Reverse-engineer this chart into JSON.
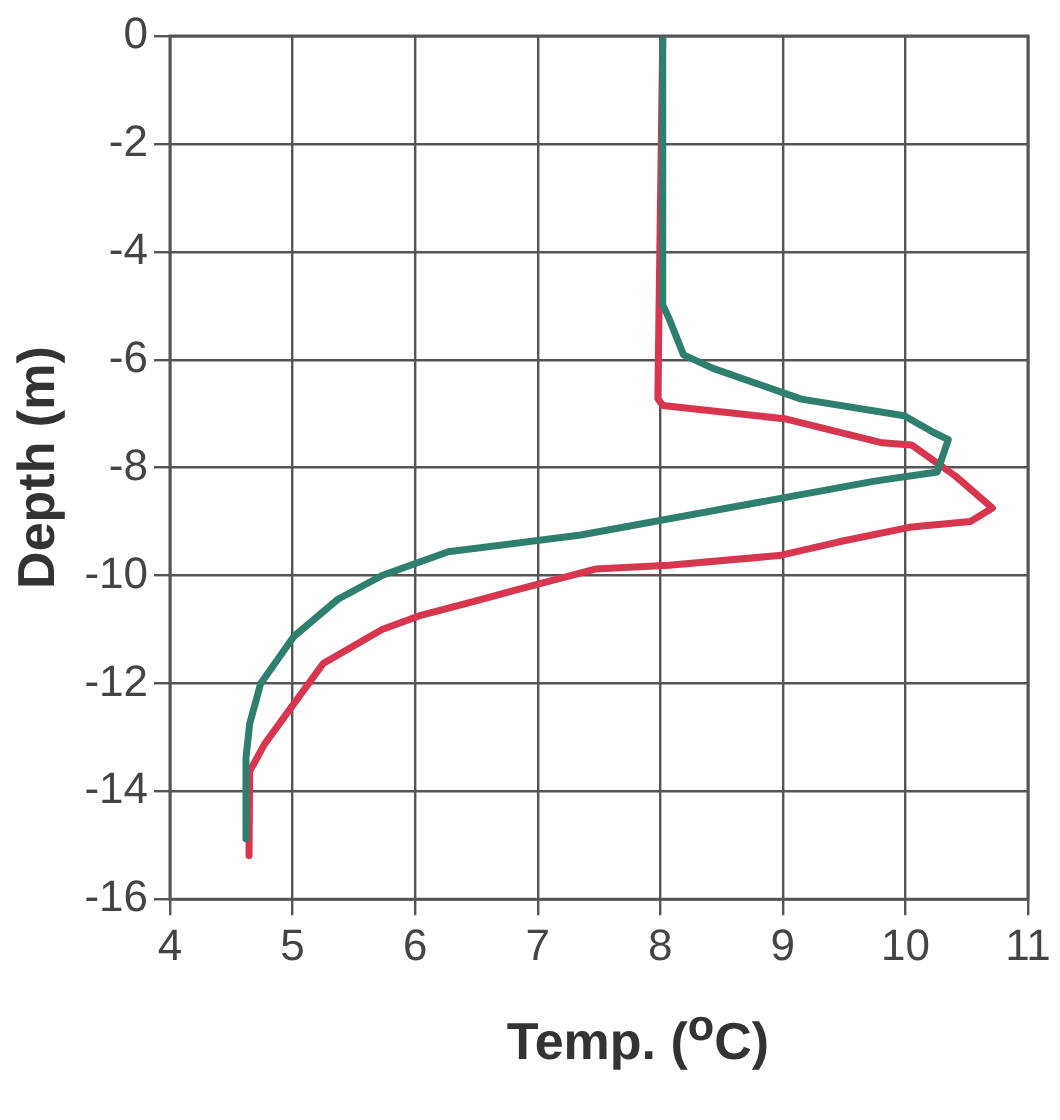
{
  "chart_data": {
    "type": "line",
    "xlabel": "Temp. ($^{o}$C)",
    "ylabel": "Depth (m)",
    "xlim": [
      4,
      11
    ],
    "xticks": [
      4,
      5,
      6,
      7,
      8,
      9,
      10,
      11
    ],
    "ylim": [
      -16,
      0
    ],
    "yticks": [
      -16,
      -14,
      -12,
      -10,
      -8,
      -6,
      -4,
      -2,
      0
    ],
    "grid": true,
    "legend": false,
    "marker": "none",
    "line_style": "solid",
    "series": [
      {
        "color": "#2e7f6e",
        "x": [
          8.02,
          8.02,
          8.07,
          8.19,
          8.43,
          9.15,
          9.99,
          10.23,
          10.35,
          10.26,
          9.75,
          8.55,
          7.35,
          6.27,
          5.73,
          5.37,
          5.01,
          4.74,
          4.65,
          4.62,
          4.62
        ],
        "values": [
          0,
          -4.98,
          -5.23,
          -5.91,
          -6.16,
          -6.73,
          -7.04,
          -7.35,
          -7.48,
          -8.08,
          -8.25,
          -8.75,
          -9.25,
          -9.56,
          -10.0,
          -10.44,
          -11.13,
          -12.0,
          -12.75,
          -13.38,
          -14.88
        ]
      },
      {
        "color": "#d8354e",
        "x": [
          8.02,
          7.98,
          8.02,
          9.03,
          9.81,
          10.05,
          10.41,
          10.71,
          10.53,
          10.05,
          9.45,
          8.97,
          8.07,
          7.47,
          7.05,
          6.45,
          6.03,
          5.73,
          5.25,
          5.01,
          4.77,
          4.65,
          4.64,
          4.65
        ],
        "values": [
          0,
          -6.72,
          -6.85,
          -7.1,
          -7.54,
          -7.58,
          -8.16,
          -8.75,
          -9.0,
          -9.1,
          -9.38,
          -9.63,
          -9.81,
          -9.88,
          -10.13,
          -10.5,
          -10.75,
          -11.0,
          -11.63,
          -12.38,
          -13.13,
          -13.63,
          -14.5,
          -15.19
        ]
      }
    ]
  }
}
